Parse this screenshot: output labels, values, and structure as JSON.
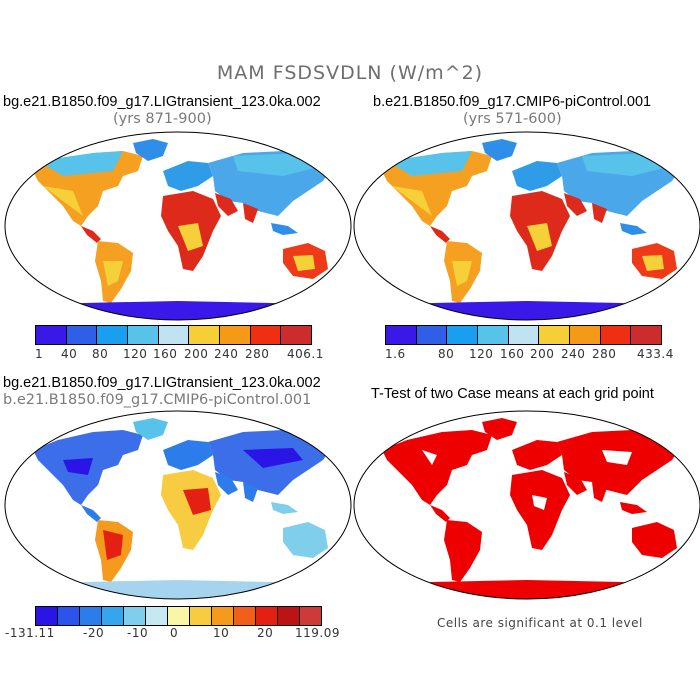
{
  "title": "MAM FSDSVDLN (W/m^2)",
  "panels": {
    "tl": {
      "title": "bg.e21.B1850.f09_g17.LIGtransient_123.0ka.002",
      "subtitle": "(yrs 871-900)"
    },
    "tr": {
      "title": "b.e21.B1850.f09_g17.CMIP6-piControl.001",
      "subtitle": "(yrs 571-600)"
    },
    "bl": {
      "title": "bg.e21.B1850.f09_g17.LIGtransient_123.0ka.002",
      "subtitle": "b.e21.B1850.f09_g17.CMIP6-piControl.001"
    },
    "br": {
      "title": "T-Test of two Case means at each grid point"
    }
  },
  "colorbars": {
    "cb1": {
      "colors": [
        "#3a18e8",
        "#2f5fe6",
        "#1a9ef0",
        "#57c2ea",
        "#bfe3f2",
        "#f5cf35",
        "#f59a18",
        "#ee2f12",
        "#cc2c2c"
      ],
      "labels": [
        "1",
        "40",
        "80",
        "120",
        "160",
        "200",
        "240",
        "280",
        "406.1"
      ]
    },
    "cb2": {
      "colors": [
        "#3a18e8",
        "#2f5fe6",
        "#1a9ef0",
        "#57c2ea",
        "#bfe3f2",
        "#f5cf35",
        "#f59a18",
        "#ee2f12",
        "#cc2c2c"
      ],
      "labels": [
        "1.6",
        "80",
        "120",
        "160",
        "200",
        "240",
        "280",
        "433.4"
      ]
    },
    "cb3": {
      "colors": [
        "#2a14e6",
        "#2a54ea",
        "#2c7cec",
        "#35a6ee",
        "#7fcfec",
        "#c6e8f2",
        "#fbf5a8",
        "#f8cc40",
        "#f59a1c",
        "#f1601a",
        "#e42012",
        "#bb1414",
        "#cc3a3a"
      ],
      "labels": [
        "-131.11",
        "-20",
        "-10",
        "0",
        "10",
        "20",
        "119.09"
      ]
    }
  },
  "note": "Cells are significant at 0.1 level",
  "colors": {
    "map_mean_hot": "#dd2222",
    "ttest_sig": "#ee0000",
    "diff_blue": "#3b6ee8"
  }
}
